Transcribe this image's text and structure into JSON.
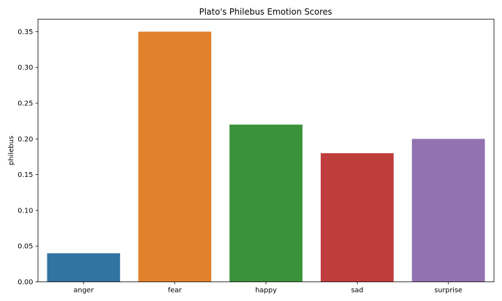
{
  "chart_data": {
    "type": "bar",
    "title": "Plato's Philebus Emotion Scores",
    "xlabel": "",
    "ylabel": "philebus",
    "categories": [
      "anger",
      "fear",
      "happy",
      "sad",
      "surprise"
    ],
    "values": [
      0.04,
      0.35,
      0.22,
      0.18,
      0.2
    ],
    "colors": [
      "#3174a1",
      "#e1812c",
      "#3a923a",
      "#c03d3e",
      "#9372b2"
    ],
    "ylim": [
      0,
      0.3675
    ],
    "yticks": [
      "0.00",
      "0.05",
      "0.10",
      "0.15",
      "0.20",
      "0.25",
      "0.30",
      "0.35"
    ],
    "grid": false,
    "legend": "none"
  }
}
